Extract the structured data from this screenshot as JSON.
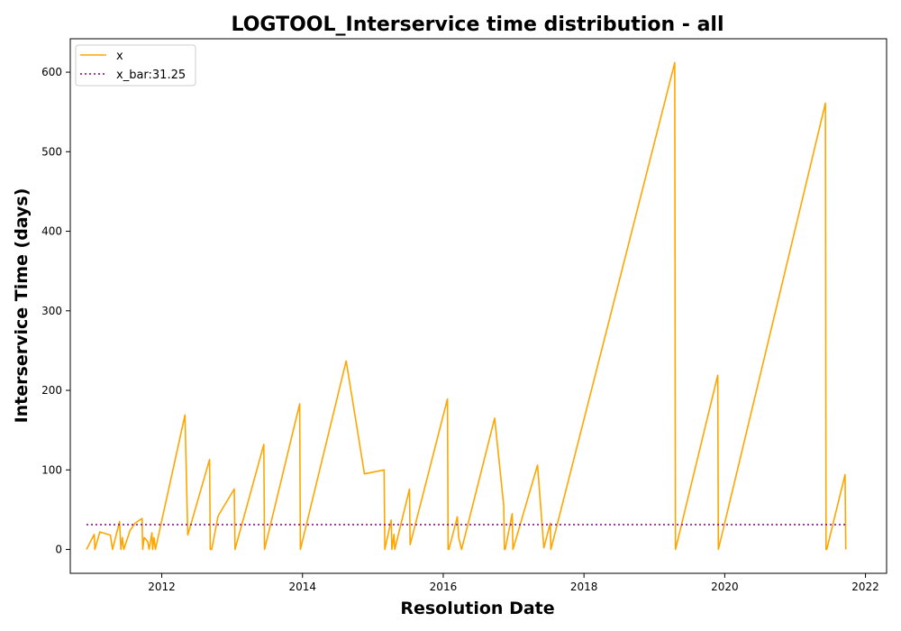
{
  "chart_data": {
    "type": "line",
    "title": "LOGTOOL_Interservice time distribution - all",
    "xlabel": "Resolution Date",
    "ylabel": "Interservice Time (days)",
    "xlim": [
      2010.7,
      2022.3
    ],
    "ylim": [
      -30,
      642
    ],
    "xticks": [
      2012,
      2014,
      2016,
      2018,
      2020,
      2022
    ],
    "yticks": [
      0,
      100,
      200,
      300,
      400,
      500,
      600
    ],
    "grid": false,
    "legend_position": "top-left",
    "colors": {
      "x": "#FFA500",
      "x_bar": "#800080"
    },
    "series": [
      {
        "name": "x",
        "style": "solid",
        "points": [
          [
            2010.93,
            0
          ],
          [
            2011.04,
            19
          ],
          [
            2011.05,
            0
          ],
          [
            2011.12,
            22
          ],
          [
            2011.27,
            18
          ],
          [
            2011.3,
            0
          ],
          [
            2011.4,
            35
          ],
          [
            2011.42,
            0
          ],
          [
            2011.44,
            15
          ],
          [
            2011.46,
            0
          ],
          [
            2011.55,
            24
          ],
          [
            2011.62,
            33
          ],
          [
            2011.72,
            39
          ],
          [
            2011.73,
            0
          ],
          [
            2011.75,
            15
          ],
          [
            2011.8,
            10
          ],
          [
            2011.82,
            0
          ],
          [
            2011.86,
            21
          ],
          [
            2011.87,
            0
          ],
          [
            2011.89,
            15
          ],
          [
            2011.91,
            0
          ],
          [
            2012.33,
            169
          ],
          [
            2012.37,
            18
          ],
          [
            2012.68,
            113
          ],
          [
            2012.69,
            0
          ],
          [
            2012.71,
            0
          ],
          [
            2012.8,
            42
          ],
          [
            2013.03,
            76
          ],
          [
            2013.04,
            0
          ],
          [
            2013.45,
            132
          ],
          [
            2013.46,
            0
          ],
          [
            2013.96,
            183
          ],
          [
            2013.97,
            0
          ],
          [
            2014.62,
            237
          ],
          [
            2014.88,
            95
          ],
          [
            2015.16,
            100
          ],
          [
            2015.17,
            0
          ],
          [
            2015.26,
            37
          ],
          [
            2015.27,
            0
          ],
          [
            2015.3,
            19
          ],
          [
            2015.31,
            0
          ],
          [
            2015.52,
            76
          ],
          [
            2015.53,
            6
          ],
          [
            2016.06,
            189
          ],
          [
            2016.07,
            0
          ],
          [
            2016.08,
            0
          ],
          [
            2016.2,
            41
          ],
          [
            2016.22,
            15
          ],
          [
            2016.26,
            0
          ],
          [
            2016.73,
            165
          ],
          [
            2016.86,
            55
          ],
          [
            2016.87,
            0
          ],
          [
            2016.88,
            0
          ],
          [
            2016.98,
            45
          ],
          [
            2016.99,
            0
          ],
          [
            2017.34,
            106
          ],
          [
            2017.43,
            2
          ],
          [
            2017.52,
            33
          ],
          [
            2017.53,
            0
          ],
          [
            2019.29,
            612
          ],
          [
            2019.3,
            0
          ],
          [
            2019.9,
            219
          ],
          [
            2019.91,
            0
          ],
          [
            2021.43,
            561
          ],
          [
            2021.44,
            0
          ],
          [
            2021.45,
            0
          ],
          [
            2021.71,
            94
          ],
          [
            2021.72,
            0
          ]
        ]
      },
      {
        "name": "x_bar:31.25",
        "style": "dotted",
        "points": [
          [
            2010.93,
            31.25
          ],
          [
            2021.72,
            31.25
          ]
        ]
      }
    ]
  }
}
